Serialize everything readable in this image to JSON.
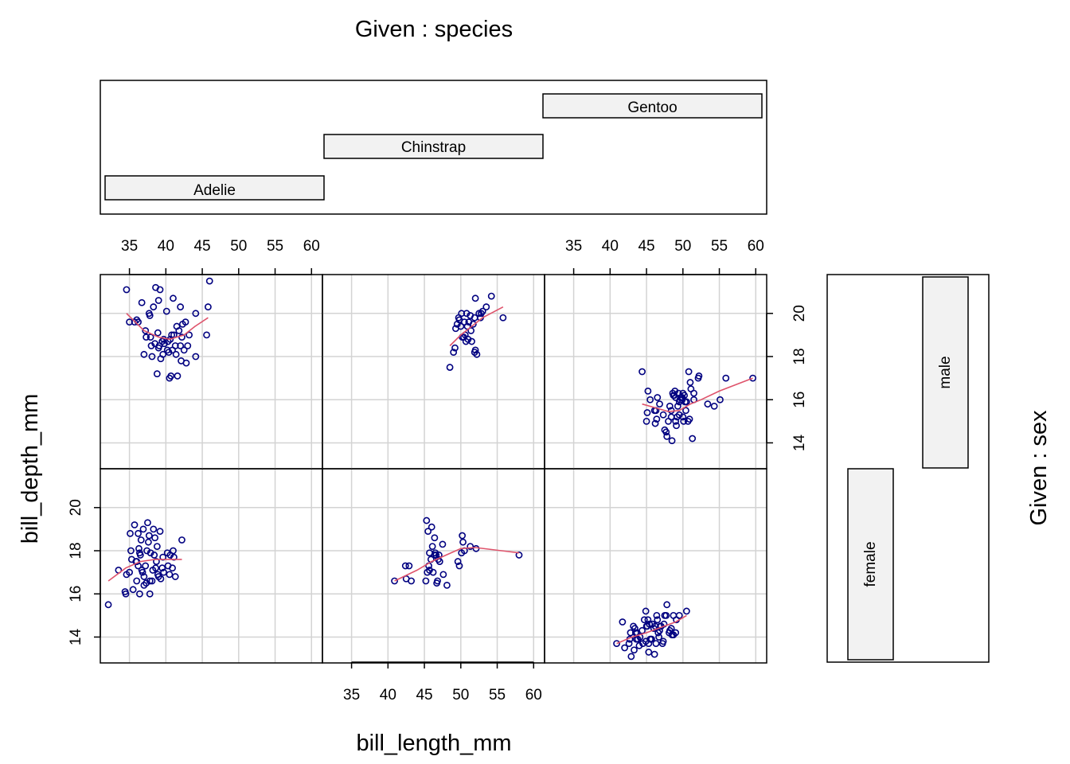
{
  "chart_data": {
    "type": "scatter",
    "title_top": "Given : species",
    "title_right": "Given : sex",
    "xlabel": "bill_length_mm",
    "ylabel": "bill_depth_mm",
    "x_ticks": [
      35,
      40,
      45,
      50,
      55,
      60
    ],
    "y_ticks": [
      14,
      16,
      18,
      20
    ],
    "xlim": [
      31,
      61.5
    ],
    "ylim": [
      12.8,
      21.8
    ],
    "grid": true,
    "species_levels": [
      "Adelie",
      "Chinstrap",
      "Gentoo"
    ],
    "sex_levels": [
      "female",
      "male"
    ],
    "colors": {
      "points": "#000080",
      "smooth": "#DF536B",
      "strip_fill": "#F2F2F2",
      "grid": "#D3D3D3"
    },
    "panels": [
      {
        "species": "Adelie",
        "sex": "female",
        "x": [
          32.1,
          34.4,
          33.5,
          35.0,
          34.6,
          36.0,
          35.5,
          36.4,
          37.0,
          36.2,
          35.2,
          37.3,
          38.1,
          36.5,
          35.9,
          37.6,
          38.6,
          36.8,
          39.0,
          37.9,
          38.8,
          36.6,
          36.9,
          37.7,
          38.3,
          39.5,
          35.7,
          39.6,
          40.2,
          41.1,
          36.2,
          37.5,
          38.7,
          39.2,
          36.7,
          37.8,
          38.9,
          40.6,
          41.3,
          42.2,
          35.3,
          36.3,
          37.2,
          38.5,
          39.7,
          40.9,
          37.0,
          38.4,
          39.3,
          36.0,
          34.5,
          37.4,
          40.5,
          41.0,
          36.4,
          35.1,
          37.8,
          38.2,
          40.3
        ],
        "y": [
          15.5,
          16.1,
          17.1,
          17.0,
          16.9,
          16.6,
          16.2,
          16.0,
          16.8,
          17.3,
          18.0,
          16.5,
          16.6,
          17.8,
          17.5,
          18.4,
          17.2,
          17.0,
          16.8,
          17.9,
          18.2,
          18.5,
          19.0,
          18.7,
          19.0,
          17.2,
          19.2,
          17.7,
          17.9,
          17.7,
          18.8,
          19.3,
          17.5,
          18.9,
          17.1,
          16.0,
          16.9,
          17.8,
          16.8,
          18.5,
          17.6,
          18.1,
          17.3,
          18.6,
          17.0,
          17.2,
          16.4,
          17.8,
          16.7,
          17.5,
          16.0,
          18.0,
          16.9,
          18.0,
          17.9,
          18.8,
          16.6,
          17.1,
          17.3
        ],
        "smooth": [
          [
            32.1,
            16.6
          ],
          [
            34.5,
            17.2
          ],
          [
            36.5,
            17.5
          ],
          [
            38.5,
            17.6
          ],
          [
            40.0,
            17.6
          ],
          [
            42.2,
            17.6
          ]
        ]
      },
      {
        "species": "Adelie",
        "sex": "male",
        "x": [
          34.6,
          35.0,
          36.0,
          37.2,
          37.9,
          38.5,
          39.0,
          39.6,
          40.2,
          40.6,
          41.1,
          41.5,
          42.0,
          42.5,
          43.0,
          44.1,
          45.6,
          46.0,
          38.1,
          38.8,
          39.3,
          39.8,
          40.3,
          40.8,
          41.3,
          41.8,
          42.2,
          42.8,
          39.1,
          39.7,
          40.9,
          41.4,
          42.3,
          37.0,
          37.7,
          38.6,
          39.2,
          38.3,
          40.1,
          41.0,
          42.7,
          36.7,
          36.2,
          37.8,
          38.9,
          39.5,
          40.4,
          40.7,
          41.6,
          42.1,
          43.2,
          45.8,
          44.1,
          39.0,
          38.0,
          40.5,
          42.0,
          35.7,
          37.3
        ],
        "y": [
          21.1,
          19.6,
          19.7,
          19.2,
          18.9,
          18.6,
          18.4,
          18.1,
          18.3,
          18.8,
          19.0,
          19.4,
          18.5,
          18.3,
          18.5,
          18.0,
          19.0,
          21.5,
          18.0,
          17.2,
          17.9,
          18.6,
          18.7,
          19.0,
          18.5,
          19.2,
          18.9,
          17.7,
          18.5,
          18.8,
          18.3,
          18.1,
          19.5,
          18.1,
          20.0,
          21.2,
          21.1,
          20.3,
          20.1,
          20.7,
          19.6,
          20.5,
          19.6,
          19.9,
          19.1,
          18.7,
          18.2,
          17.1,
          17.1,
          17.8,
          19.0,
          20.3,
          20.0,
          20.6,
          18.5,
          17.0,
          20.3,
          19.6,
          18.9
        ],
        "smooth": [
          [
            34.6,
            20.0
          ],
          [
            37.0,
            19.2
          ],
          [
            39.0,
            18.9
          ],
          [
            40.5,
            18.8
          ],
          [
            42.5,
            19.0
          ],
          [
            44.0,
            19.4
          ],
          [
            45.8,
            19.8
          ]
        ]
      },
      {
        "species": "Chinstrap",
        "sex": "female",
        "x": [
          40.9,
          42.4,
          42.5,
          43.2,
          42.9,
          45.2,
          45.4,
          45.6,
          45.7,
          45.9,
          46.2,
          46.4,
          46.1,
          46.5,
          46.6,
          46.7,
          46.8,
          46.9,
          47.0,
          47.5,
          47.6,
          48.1,
          49.8,
          50.1,
          50.2,
          50.3,
          50.5,
          51.3,
          52.1,
          58.0,
          45.5,
          46.4,
          45.3,
          45.7,
          46.0,
          47.1,
          49.6
        ],
        "y": [
          16.6,
          17.3,
          16.7,
          16.6,
          17.3,
          16.6,
          17.0,
          17.3,
          17.1,
          17.6,
          17.0,
          17.8,
          18.2,
          17.9,
          17.8,
          16.5,
          16.6,
          17.6,
          17.8,
          18.3,
          16.9,
          16.4,
          17.3,
          17.9,
          18.7,
          18.4,
          18.0,
          18.2,
          18.1,
          17.8,
          18.9,
          18.6,
          19.4,
          17.9,
          19.1,
          17.5,
          17.5
        ],
        "smooth": [
          [
            40.9,
            16.6
          ],
          [
            44.0,
            17.1
          ],
          [
            46.0,
            17.5
          ],
          [
            48.0,
            17.8
          ],
          [
            50.0,
            18.1
          ],
          [
            52.0,
            18.15
          ],
          [
            58.0,
            17.9
          ]
        ]
      },
      {
        "species": "Chinstrap",
        "sex": "male",
        "x": [
          48.5,
          49.0,
          49.2,
          49.5,
          49.7,
          50.0,
          50.2,
          50.4,
          50.5,
          50.6,
          50.7,
          50.9,
          51.0,
          51.3,
          51.4,
          51.5,
          51.7,
          51.9,
          52.0,
          52.2,
          52.5,
          52.7,
          52.8,
          53.0,
          53.5,
          54.2,
          55.8,
          49.3,
          50.8,
          51.1,
          50.1,
          49.8,
          52.0,
          51.9
        ],
        "y": [
          17.5,
          18.2,
          18.4,
          19.5,
          19.8,
          19.4,
          18.9,
          18.9,
          19.6,
          19.0,
          18.7,
          19.4,
          18.8,
          19.9,
          19.2,
          18.7,
          19.5,
          19.8,
          18.3,
          18.1,
          20.0,
          19.8,
          20.0,
          20.1,
          20.3,
          20.8,
          19.8,
          19.3,
          20.0,
          19.6,
          20.0,
          19.7,
          20.7,
          18.2
        ],
        "smooth": [
          [
            48.5,
            18.5
          ],
          [
            50.0,
            19.0
          ],
          [
            51.5,
            19.4
          ],
          [
            53.0,
            19.8
          ],
          [
            55.8,
            20.3
          ]
        ]
      },
      {
        "species": "Gentoo",
        "sex": "female",
        "x": [
          40.9,
          41.7,
          42.0,
          42.6,
          42.8,
          42.9,
          43.2,
          43.3,
          43.4,
          43.5,
          43.6,
          43.8,
          44.0,
          44.1,
          44.4,
          44.5,
          44.9,
          45.0,
          45.1,
          45.2,
          45.3,
          45.4,
          45.5,
          45.7,
          45.8,
          46.0,
          46.1,
          46.2,
          46.4,
          46.5,
          46.6,
          46.8,
          46.9,
          47.0,
          47.2,
          47.4,
          47.5,
          47.7,
          48.1,
          48.2,
          48.4,
          48.5,
          48.7,
          49.1,
          49.5,
          50.5,
          44.7,
          45.6,
          47.3,
          46.3,
          42.7,
          45.3,
          48.7,
          47.8,
          44.9,
          43.7,
          46.7,
          49.0
        ],
        "y": [
          13.7,
          14.7,
          13.5,
          13.7,
          14.2,
          13.1,
          14.5,
          13.4,
          14.4,
          14.2,
          13.9,
          13.9,
          13.6,
          14.0,
          14.3,
          13.7,
          13.8,
          14.5,
          14.5,
          14.8,
          13.7,
          14.6,
          13.9,
          13.9,
          14.6,
          14.4,
          13.2,
          14.5,
          15.0,
          14.8,
          14.2,
          14.3,
          14.5,
          14.5,
          13.7,
          14.6,
          15.0,
          15.0,
          14.2,
          14.3,
          14.4,
          14.1,
          14.1,
          14.8,
          15.0,
          15.2,
          14.8,
          13.9,
          13.8,
          13.7,
          13.9,
          13.3,
          15.0,
          15.5,
          15.2,
          14.2,
          14.0,
          14.2
        ],
        "smooth": [
          [
            40.9,
            13.7
          ],
          [
            43.0,
            14.0
          ],
          [
            45.0,
            14.2
          ],
          [
            47.0,
            14.45
          ],
          [
            49.0,
            14.7
          ],
          [
            50.5,
            15.0
          ]
        ]
      },
      {
        "species": "Gentoo",
        "sex": "male",
        "x": [
          44.4,
          45.2,
          45.0,
          45.5,
          46.1,
          46.2,
          46.3,
          46.5,
          46.8,
          47.3,
          47.5,
          47.8,
          48.2,
          48.4,
          48.5,
          48.6,
          48.7,
          48.8,
          49.0,
          49.1,
          49.2,
          49.3,
          49.4,
          49.5,
          49.6,
          49.7,
          49.8,
          49.9,
          50.0,
          50.1,
          50.2,
          50.4,
          50.5,
          50.7,
          50.8,
          51.0,
          51.1,
          51.3,
          51.5,
          52.1,
          52.2,
          53.4,
          54.3,
          55.1,
          55.9,
          59.6,
          48.0,
          49.0,
          50.0,
          49.5,
          48.4,
          47.7,
          46.4,
          45.1,
          50.9,
          49.9,
          48.9,
          50.3,
          51.5
        ],
        "y": [
          17.3,
          16.4,
          15.0,
          16.0,
          15.5,
          14.9,
          15.5,
          16.1,
          15.8,
          15.3,
          14.6,
          14.3,
          15.7,
          15.2,
          14.1,
          16.3,
          16.2,
          16.2,
          16.1,
          14.8,
          15.2,
          15.7,
          16.3,
          15.9,
          16.0,
          16.1,
          16.1,
          16.0,
          16.3,
          15.0,
          16.2,
          15.5,
          15.9,
          15.0,
          17.3,
          16.8,
          16.5,
          14.2,
          16.3,
          17.0,
          17.1,
          15.8,
          15.7,
          16.0,
          17.0,
          17.0,
          15.0,
          15.0,
          15.2,
          15.3,
          15.5,
          14.5,
          15.1,
          15.4,
          15.1,
          16.1,
          16.4,
          15.9,
          16.0
        ],
        "smooth": [
          [
            44.4,
            15.8
          ],
          [
            46.5,
            15.6
          ],
          [
            48.0,
            15.45
          ],
          [
            49.5,
            15.5
          ],
          [
            51.0,
            15.8
          ],
          [
            52.5,
            16.0
          ],
          [
            55.0,
            16.4
          ],
          [
            59.6,
            17.0
          ]
        ]
      }
    ]
  }
}
